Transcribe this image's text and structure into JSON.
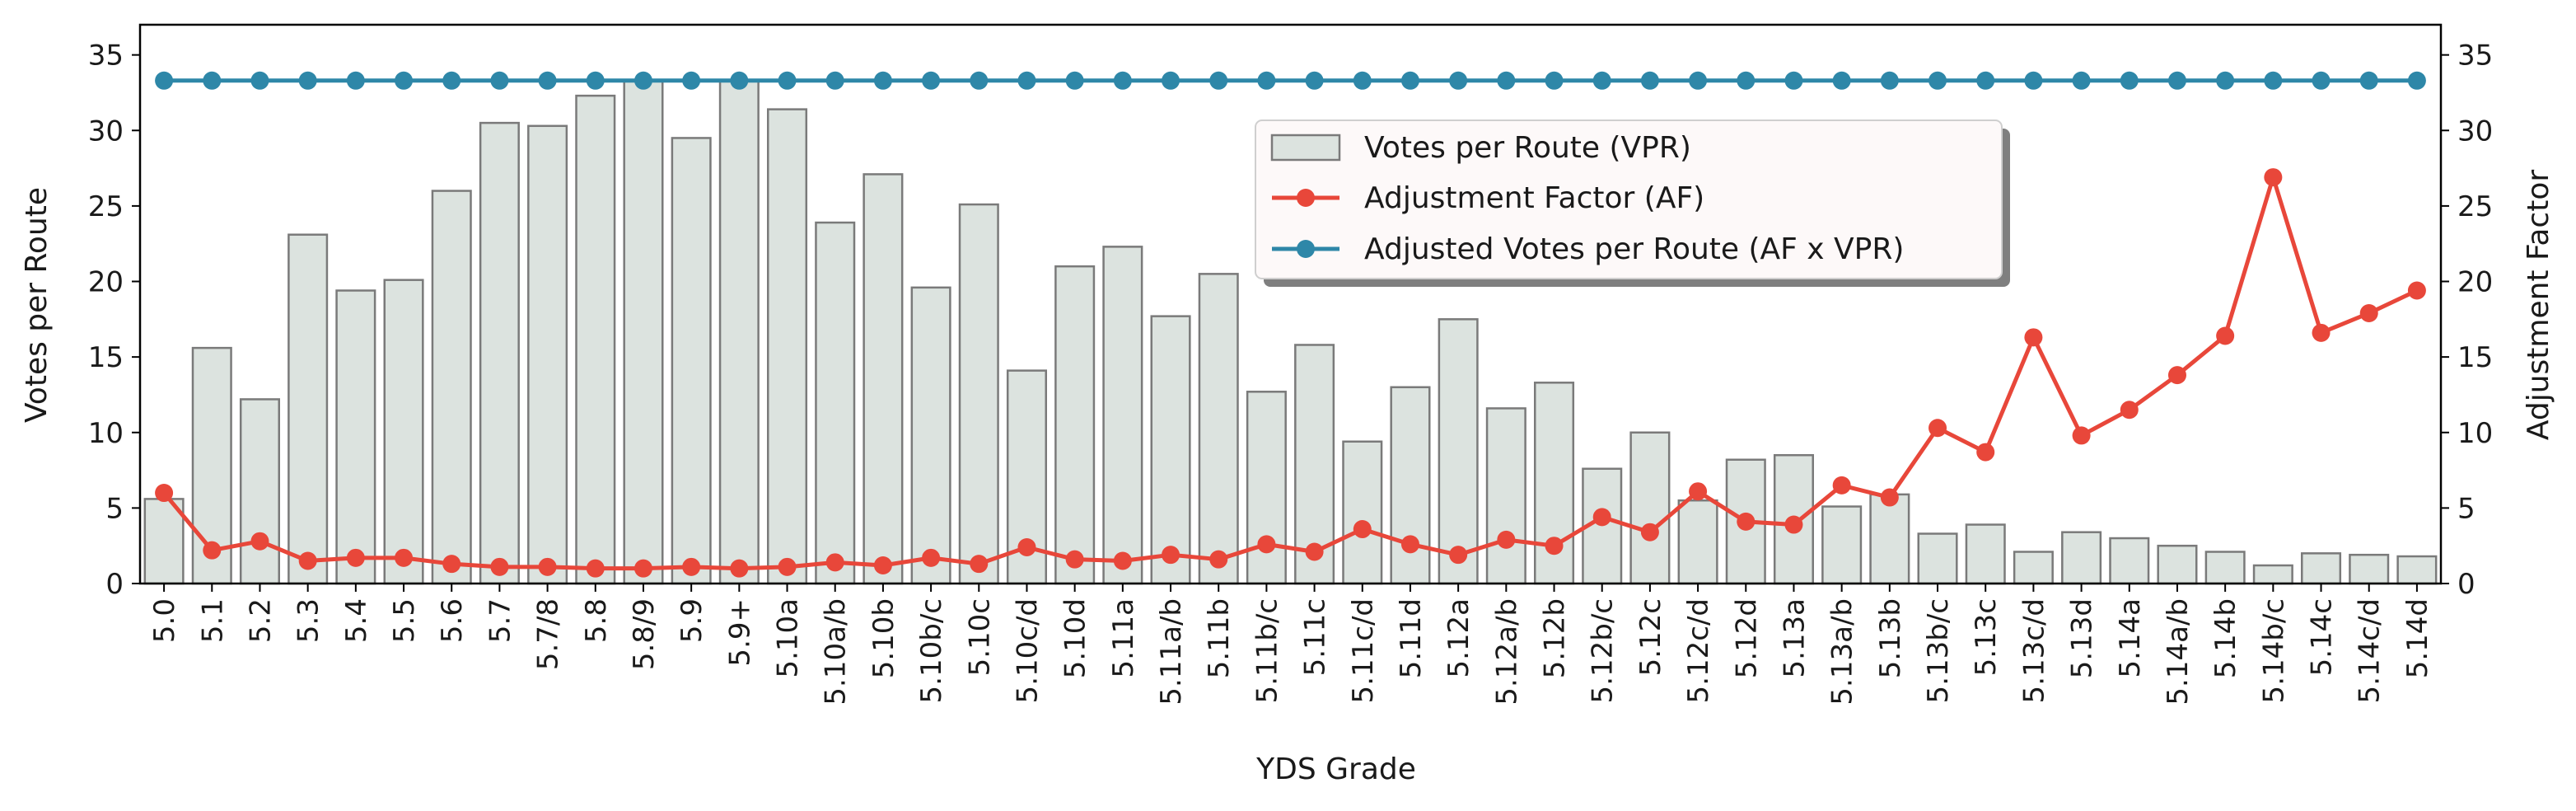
{
  "chart_data": {
    "type": "bar",
    "title": "",
    "xlabel": "YDS Grade",
    "ylabel": "Votes per Route",
    "y2label": "Adjustment Factor",
    "ylim": [
      0,
      37
    ],
    "y2lim": [
      0,
      37
    ],
    "yticks": [
      0,
      5,
      10,
      15,
      20,
      25,
      30,
      35
    ],
    "legend_position": "upper-center",
    "categories": [
      "5.0",
      "5.1",
      "5.2",
      "5.3",
      "5.4",
      "5.5",
      "5.6",
      "5.7",
      "5.7/8",
      "5.8",
      "5.8/9",
      "5.9",
      "5.9+",
      "5.10a",
      "5.10a/b",
      "5.10b",
      "5.10b/c",
      "5.10c",
      "5.10c/d",
      "5.10d",
      "5.11a",
      "5.11a/b",
      "5.11b",
      "5.11b/c",
      "5.11c",
      "5.11c/d",
      "5.11d",
      "5.12a",
      "5.12a/b",
      "5.12b",
      "5.12b/c",
      "5.12c",
      "5.12c/d",
      "5.12d",
      "5.13a",
      "5.13a/b",
      "5.13b",
      "5.13b/c",
      "5.13c",
      "5.13c/d",
      "5.13d",
      "5.14a",
      "5.14a/b",
      "5.14b",
      "5.14b/c",
      "5.14c",
      "5.14c/d",
      "5.14d"
    ],
    "series": [
      {
        "name": "Votes per Route (VPR)",
        "kind": "bar",
        "axis": "left",
        "color": "#dce3df",
        "edge": "#7a7a7a",
        "values": [
          5.6,
          15.6,
          12.2,
          23.1,
          19.4,
          20.1,
          26.0,
          30.5,
          30.3,
          32.3,
          33.3,
          29.5,
          33.3,
          31.4,
          23.9,
          27.1,
          19.6,
          25.1,
          14.1,
          21.0,
          22.3,
          17.7,
          20.5,
          12.7,
          15.8,
          9.4,
          13.0,
          17.5,
          11.6,
          13.3,
          7.6,
          10.0,
          5.5,
          8.2,
          8.5,
          5.1,
          5.9,
          3.3,
          3.9,
          2.1,
          3.4,
          3.0,
          2.5,
          2.1,
          1.2,
          2.0,
          1.9,
          1.8
        ]
      },
      {
        "name": "Adjustment Factor (AF)",
        "kind": "line",
        "axis": "right",
        "color": "#e8473a",
        "values": [
          6.0,
          2.2,
          2.8,
          1.5,
          1.7,
          1.7,
          1.3,
          1.1,
          1.1,
          1.0,
          1.0,
          1.1,
          1.0,
          1.1,
          1.4,
          1.2,
          1.7,
          1.3,
          2.4,
          1.6,
          1.5,
          1.9,
          1.6,
          2.6,
          2.1,
          3.6,
          2.6,
          1.9,
          2.9,
          2.5,
          4.4,
          3.4,
          6.1,
          4.1,
          3.9,
          6.5,
          5.7,
          10.3,
          8.7,
          16.3,
          9.8,
          11.5,
          13.8,
          16.4,
          26.9,
          16.6,
          17.9,
          19.4
        ]
      },
      {
        "name": "Adjusted Votes per Route (AF x VPR)",
        "kind": "line",
        "axis": "right",
        "color": "#2e87a8",
        "values": [
          33.3,
          33.3,
          33.3,
          33.3,
          33.3,
          33.3,
          33.3,
          33.3,
          33.3,
          33.3,
          33.3,
          33.3,
          33.3,
          33.3,
          33.3,
          33.3,
          33.3,
          33.3,
          33.3,
          33.3,
          33.3,
          33.3,
          33.3,
          33.3,
          33.3,
          33.3,
          33.3,
          33.3,
          33.3,
          33.3,
          33.3,
          33.3,
          33.3,
          33.3,
          33.3,
          33.3,
          33.3,
          33.3,
          33.3,
          33.3,
          33.3,
          33.3,
          33.3,
          33.3,
          33.3,
          33.3,
          33.3,
          33.3
        ]
      }
    ]
  }
}
